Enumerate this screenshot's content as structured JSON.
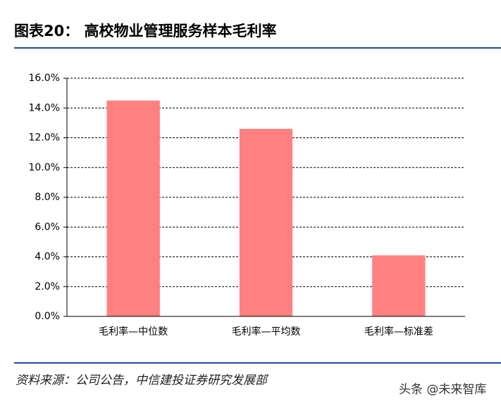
{
  "chart_data": {
    "type": "bar",
    "title": "图表20：  高校物业管理服务样本毛利率",
    "categories": [
      "毛利率—中位数",
      "毛利率—平均数",
      "毛利率—标准差"
    ],
    "values": [
      14.5,
      12.6,
      4.1
    ],
    "color": "#ff8080",
    "ylim": [
      0,
      16
    ],
    "yticks": [
      {
        "value": 0,
        "label": "0.0%"
      },
      {
        "value": 2,
        "label": "2.0%"
      },
      {
        "value": 4,
        "label": "4.0%"
      },
      {
        "value": 6,
        "label": "6.0%"
      },
      {
        "value": 8,
        "label": "8.0%"
      },
      {
        "value": 10,
        "label": "10.0%"
      },
      {
        "value": 12,
        "label": "12.0%"
      },
      {
        "value": 14,
        "label": "14.0%"
      },
      {
        "value": 16,
        "label": "16.0%"
      }
    ],
    "grid": true
  },
  "source": "资料来源：公司公告，中信建投证券研究发展部",
  "watermark": "头条 @未来智库"
}
